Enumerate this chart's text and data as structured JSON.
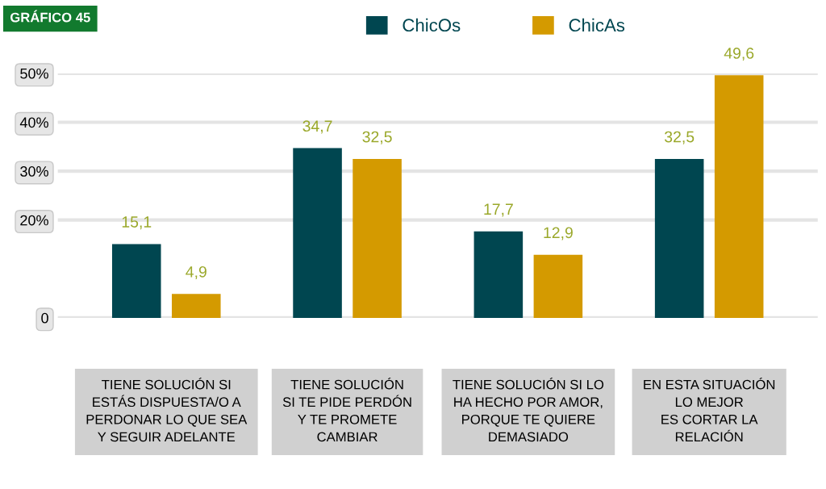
{
  "chart_data": {
    "type": "bar",
    "title": "GRÁFICO 45",
    "categories": [
      "TIENE SOLUCIÓN SI\nESTÁS DISPUESTA/O A\nPERDONAR LO QUE SEA\nY SEGUIR ADELANTE",
      "TIENE SOLUCIÓN\nSI TE PIDE PERDÓN\nY TE PROMETE\nCAMBIAR",
      "TIENE SOLUCIÓN SI LO\nHA HECHO POR AMOR,\nPORQUE TE QUIERE\nDEMASIADO",
      "EN ESTA SITUACIÓN\nLO MEJOR\nES CORTAR LA\nRELACIÓN"
    ],
    "series": [
      {
        "name": "ChicOs",
        "color": "#004650",
        "values": [
          15.1,
          34.7,
          17.7,
          32.5
        ],
        "value_labels": [
          "15,1",
          "34,7",
          "17,7",
          "32,5"
        ]
      },
      {
        "name": "ChicAs",
        "color": "#d49a00",
        "values": [
          4.9,
          32.5,
          12.9,
          49.6
        ],
        "value_labels": [
          "4,9",
          "32,5",
          "12,9",
          "49,6"
        ]
      }
    ],
    "ylim": [
      0,
      50
    ],
    "yticks": [
      {
        "value": 0,
        "label": "0"
      },
      {
        "value": 20,
        "label": "20%"
      },
      {
        "value": 30,
        "label": "30%"
      },
      {
        "value": 40,
        "label": "40%"
      },
      {
        "value": 50,
        "label": "50%"
      }
    ],
    "grid": "y",
    "legend": "top"
  }
}
